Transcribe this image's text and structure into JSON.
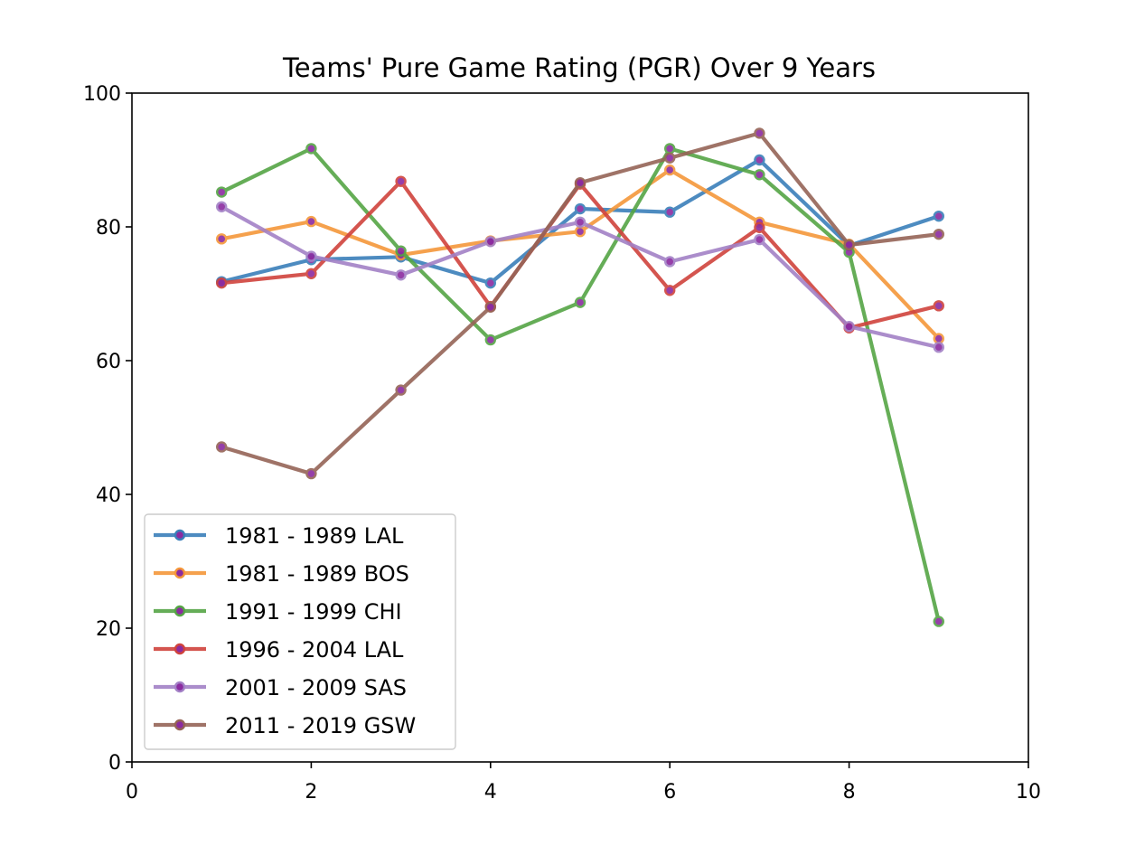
{
  "chart_data": {
    "type": "line",
    "title": "Teams' Pure Game Rating (PGR) Over 9 Years",
    "xlabel": "",
    "ylabel": "",
    "xlim": [
      0,
      10
    ],
    "ylim": [
      0,
      100
    ],
    "xticks": [
      0,
      2,
      4,
      6,
      8,
      10
    ],
    "yticks": [
      0,
      20,
      40,
      60,
      80,
      100
    ],
    "grid": false,
    "legend_position": "lower-left",
    "x": [
      1,
      2,
      3,
      4,
      5,
      6,
      7,
      8,
      9
    ],
    "series": [
      {
        "name": "1981 - 1989 LAL",
        "color": "#3a7fba",
        "values": [
          71.8,
          75.1,
          75.5,
          71.6,
          82.7,
          82.2,
          90.0,
          77.2,
          81.6
        ]
      },
      {
        "name": "1981 - 1989 BOS",
        "color": "#f4973a",
        "values": [
          78.2,
          80.8,
          75.8,
          77.9,
          79.3,
          88.5,
          80.7,
          77.4,
          63.3
        ]
      },
      {
        "name": "1991 - 1999 CHI",
        "color": "#55a545",
        "values": [
          85.2,
          91.7,
          76.4,
          63.1,
          68.7,
          91.7,
          87.8,
          76.2,
          21.0
        ]
      },
      {
        "name": "1996 - 2004 LAL",
        "color": "#d0433d",
        "values": [
          71.6,
          73.0,
          86.8,
          68.1,
          86.4,
          70.5,
          79.9,
          64.9,
          68.2
        ]
      },
      {
        "name": "2001 - 2009 SAS",
        "color": "#a381c6",
        "values": [
          83.0,
          75.6,
          72.8,
          77.8,
          80.7,
          74.8,
          78.1,
          65.1,
          62.0
        ]
      },
      {
        "name": "2011 - 2019 GSW",
        "color": "#956457",
        "values": [
          47.1,
          43.1,
          55.6,
          68.0,
          86.6,
          90.3,
          94.0,
          77.3,
          78.9
        ]
      }
    ],
    "marker_center_color": "#8b2ba0"
  }
}
